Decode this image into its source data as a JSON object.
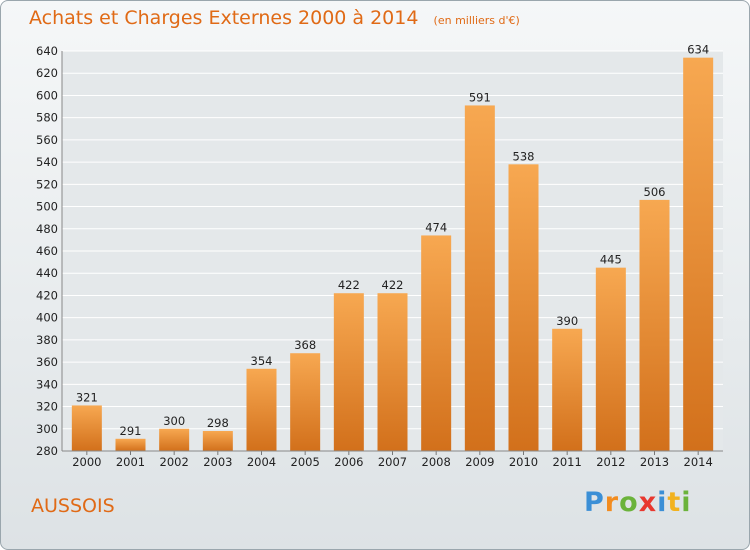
{
  "title": "Achats et Charges Externes 2000 à 2014",
  "subtitle": "(en milliers d'€)",
  "commune": "AUSSOIS",
  "brand": "Proxiti",
  "colors": {
    "accent": "#e06a16",
    "bar_top": "#f7a851",
    "bar_bottom": "#d2701b",
    "grid": "#ffffff"
  },
  "chart_data": {
    "type": "bar",
    "categories": [
      "2000",
      "2001",
      "2002",
      "2003",
      "2004",
      "2005",
      "2006",
      "2007",
      "2008",
      "2009",
      "2010",
      "2011",
      "2012",
      "2013",
      "2014"
    ],
    "values": [
      321,
      291,
      300,
      298,
      354,
      368,
      422,
      422,
      474,
      591,
      538,
      390,
      445,
      506,
      634
    ],
    "ylim": [
      280,
      640
    ],
    "ytick_step": 20,
    "grid": true,
    "data_labels": true
  }
}
